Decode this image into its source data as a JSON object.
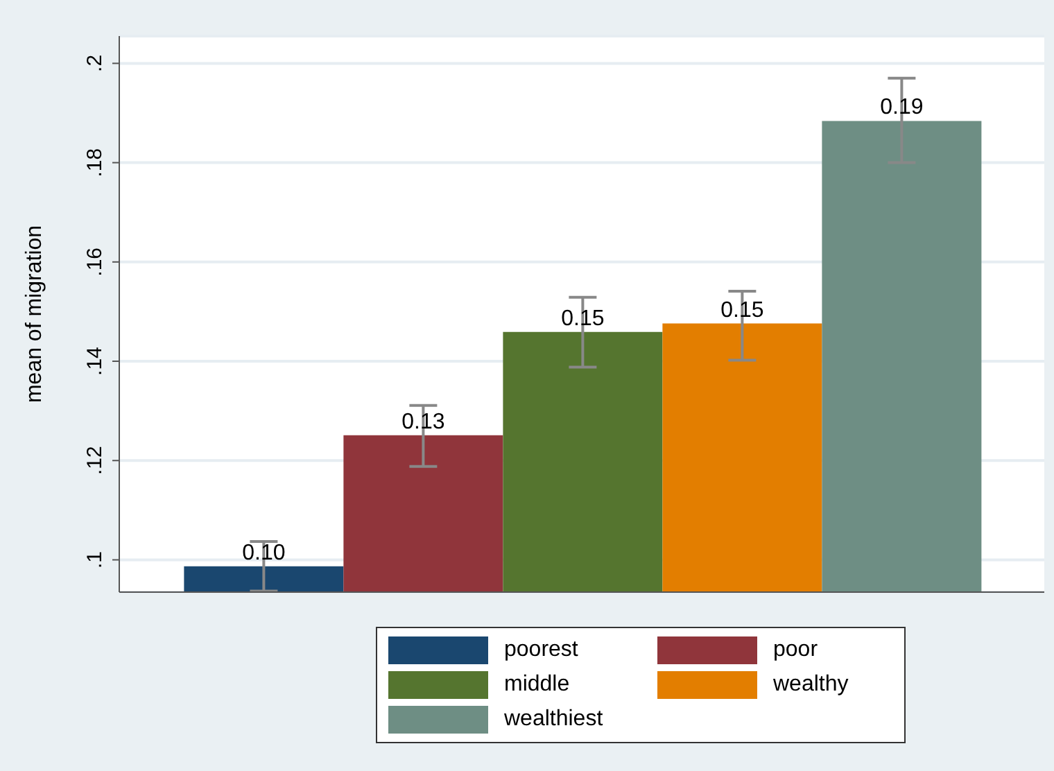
{
  "chart_data": {
    "type": "bar",
    "ylabel": "mean of migration",
    "categories": [
      null
    ],
    "series": [
      {
        "name": "poorest",
        "color": "#1a476f",
        "values": [
          0.0987
        ],
        "errors": [
          [
            0.0937,
            0.1037
          ]
        ],
        "value_labels": [
          "0.10"
        ]
      },
      {
        "name": "poor",
        "color": "#90353b",
        "values": [
          0.1251
        ],
        "errors": [
          [
            0.1188,
            0.1311
          ]
        ],
        "value_labels": [
          "0.13"
        ]
      },
      {
        "name": "middle",
        "color": "#55752f",
        "values": [
          0.1459
        ],
        "errors": [
          [
            0.1388,
            0.1529
          ]
        ],
        "value_labels": [
          "0.15"
        ]
      },
      {
        "name": "wealthy",
        "color": "#e37e00",
        "values": [
          0.1476
        ],
        "errors": [
          [
            0.1402,
            0.1541
          ]
        ],
        "value_labels": [
          "0.15"
        ]
      },
      {
        "name": "wealthiest",
        "color": "#6e8e84",
        "values": [
          0.1884
        ],
        "errors": [
          [
            0.18,
            0.197
          ]
        ],
        "value_labels": [
          "0.19"
        ]
      }
    ],
    "ylim": [
      0.0935,
      0.2055
    ],
    "yticks": [
      {
        "value": 0.1,
        "label": ".1"
      },
      {
        "value": 0.12,
        "label": ".12"
      },
      {
        "value": 0.14,
        "label": ".14"
      },
      {
        "value": 0.16,
        "label": ".16"
      },
      {
        "value": 0.18,
        "label": ".18"
      },
      {
        "value": 0.2,
        "label": ".2"
      }
    ],
    "grid": "y",
    "legend": "bottom"
  }
}
